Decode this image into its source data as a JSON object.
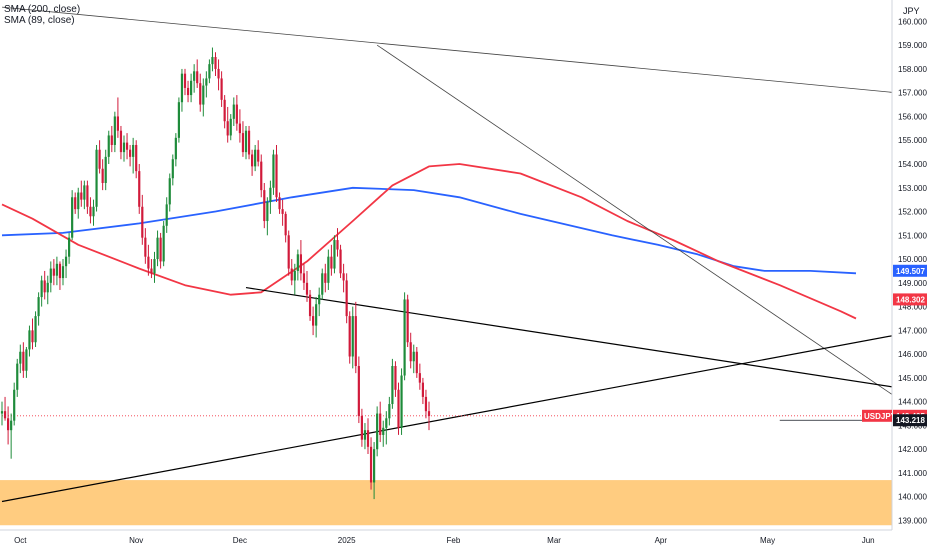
{
  "legend": {
    "sma200": "SMA (200, close)",
    "sma89": "SMA (89, close)"
  },
  "currency_label": "JPY",
  "colors": {
    "up": "#1e8b3a",
    "down": "#d11a3a",
    "sma200": "#2962ff",
    "sma89": "#f23645",
    "support_zone": "#ffcc80",
    "trendline": "#000000",
    "background": "#ffffff",
    "grid": "#ffffff"
  },
  "chart_data": {
    "type": "candlestick",
    "symbol": "USDJPY",
    "price_scale": {
      "ylim": [
        138.6,
        160.9
      ],
      "ticks": [
        "139.000",
        "140.000",
        "141.000",
        "142.000",
        "143.000",
        "144.000",
        "145.000",
        "146.000",
        "147.000",
        "148.000",
        "149.000",
        "150.000",
        "151.000",
        "152.000",
        "153.000",
        "154.000",
        "155.000",
        "156.000",
        "157.000",
        "158.000",
        "159.000",
        "160.000"
      ]
    },
    "time_axis": {
      "labels": [
        "Oct",
        "Nov",
        "Dec",
        "2025",
        "Feb",
        "Mar",
        "Apr",
        "May",
        "Jun"
      ]
    },
    "price_labels": [
      {
        "text": "USDJPY",
        "value": "143.405",
        "color": "#f23645"
      },
      {
        "text": "",
        "value": "143.218",
        "color": "#131722"
      },
      {
        "text": "",
        "value": "149.507",
        "color": "#2962ff"
      },
      {
        "text": "",
        "value": "148.302",
        "color": "#f23645"
      }
    ],
    "support_zone": [
      138.8,
      140.7
    ],
    "candles": [
      [
        143.5,
        144.0,
        143.0,
        143.6
      ],
      [
        143.6,
        144.2,
        143.2,
        143.3
      ],
      [
        143.3,
        143.8,
        142.2,
        142.8
      ],
      [
        142.8,
        143.5,
        141.6,
        143.2
      ],
      [
        143.2,
        144.8,
        143.0,
        144.5
      ],
      [
        144.5,
        145.8,
        144.2,
        145.6
      ],
      [
        145.6,
        146.4,
        145.2,
        146.1
      ],
      [
        146.1,
        146.5,
        145.0,
        145.3
      ],
      [
        145.3,
        146.3,
        145.0,
        146.2
      ],
      [
        146.2,
        147.2,
        145.9,
        147.0
      ],
      [
        147.0,
        147.5,
        146.2,
        146.5
      ],
      [
        146.5,
        147.8,
        146.3,
        147.6
      ],
      [
        147.6,
        148.6,
        147.2,
        148.4
      ],
      [
        148.4,
        149.3,
        148.0,
        149.1
      ],
      [
        149.1,
        149.5,
        148.3,
        148.6
      ],
      [
        148.6,
        149.3,
        148.1,
        149.0
      ],
      [
        149.0,
        149.9,
        148.6,
        149.6
      ],
      [
        149.6,
        150.0,
        148.9,
        149.3
      ],
      [
        149.3,
        150.1,
        148.9,
        149.8
      ],
      [
        149.8,
        149.9,
        148.7,
        149.2
      ],
      [
        149.2,
        150.0,
        148.9,
        149.7
      ],
      [
        149.7,
        150.4,
        149.2,
        150.1
      ],
      [
        150.1,
        151.1,
        149.8,
        150.9
      ],
      [
        150.9,
        152.9,
        150.8,
        152.6
      ],
      [
        152.6,
        152.8,
        151.9,
        152.1
      ],
      [
        152.1,
        153.0,
        151.7,
        152.8
      ],
      [
        152.8,
        153.3,
        152.2,
        152.5
      ],
      [
        152.5,
        153.3,
        152.1,
        153.1
      ],
      [
        153.1,
        153.3,
        151.9,
        152.2
      ],
      [
        152.2,
        152.6,
        151.5,
        151.8
      ],
      [
        151.8,
        152.5,
        151.4,
        152.2
      ],
      [
        152.2,
        154.8,
        152.0,
        154.6
      ],
      [
        154.6,
        155.0,
        153.6,
        153.8
      ],
      [
        153.8,
        154.2,
        152.9,
        153.2
      ],
      [
        153.2,
        154.6,
        152.9,
        154.3
      ],
      [
        154.3,
        155.4,
        154.0,
        155.2
      ],
      [
        155.2,
        155.6,
        154.5,
        154.8
      ],
      [
        154.8,
        156.2,
        154.5,
        156.0
      ],
      [
        156.0,
        156.8,
        155.1,
        155.4
      ],
      [
        155.4,
        155.6,
        154.2,
        154.5
      ],
      [
        154.5,
        155.2,
        154.1,
        154.9
      ],
      [
        154.9,
        155.3,
        154.2,
        154.6
      ],
      [
        154.6,
        154.8,
        153.9,
        154.3
      ],
      [
        154.3,
        155.1,
        153.6,
        154.8
      ],
      [
        154.8,
        155.0,
        153.4,
        153.7
      ],
      [
        153.7,
        154.0,
        151.9,
        152.2
      ],
      [
        152.2,
        152.7,
        150.6,
        150.9
      ],
      [
        150.9,
        151.3,
        149.8,
        150.1
      ],
      [
        150.1,
        150.6,
        149.3,
        149.6
      ],
      [
        149.6,
        150.0,
        149.2,
        149.4
      ],
      [
        149.4,
        150.3,
        149.0,
        150.0
      ],
      [
        150.0,
        151.2,
        149.7,
        150.9
      ],
      [
        150.9,
        151.1,
        149.6,
        149.9
      ],
      [
        149.9,
        151.6,
        149.7,
        151.4
      ],
      [
        151.4,
        152.6,
        151.1,
        152.3
      ],
      [
        152.3,
        153.6,
        152.0,
        153.4
      ],
      [
        153.4,
        154.4,
        153.1,
        154.2
      ],
      [
        154.2,
        155.3,
        153.9,
        155.1
      ],
      [
        155.1,
        156.8,
        154.9,
        156.6
      ],
      [
        156.6,
        158.0,
        156.2,
        157.8
      ],
      [
        157.8,
        158.0,
        156.9,
        157.2
      ],
      [
        157.2,
        157.5,
        156.6,
        156.9
      ],
      [
        156.9,
        157.8,
        156.6,
        157.5
      ],
      [
        157.5,
        158.2,
        157.0,
        157.9
      ],
      [
        157.9,
        158.4,
        157.2,
        157.4
      ],
      [
        157.4,
        157.8,
        156.2,
        156.5
      ],
      [
        156.5,
        157.6,
        156.0,
        157.3
      ],
      [
        157.3,
        157.9,
        156.8,
        157.6
      ],
      [
        157.6,
        158.4,
        157.4,
        158.2
      ],
      [
        158.2,
        158.9,
        157.9,
        158.5
      ],
      [
        158.5,
        158.7,
        157.7,
        158.0
      ],
      [
        158.0,
        158.4,
        157.1,
        157.6
      ],
      [
        157.6,
        157.9,
        156.4,
        156.7
      ],
      [
        156.7,
        156.9,
        155.5,
        155.8
      ],
      [
        155.8,
        156.4,
        154.9,
        155.2
      ],
      [
        155.2,
        156.1,
        155.0,
        155.9
      ],
      [
        155.9,
        156.8,
        155.6,
        156.5
      ],
      [
        156.5,
        156.9,
        155.4,
        155.7
      ],
      [
        155.7,
        156.3,
        154.9,
        155.3
      ],
      [
        155.3,
        155.8,
        154.3,
        154.5
      ],
      [
        154.5,
        155.6,
        154.2,
        155.4
      ],
      [
        155.4,
        155.6,
        154.2,
        154.4
      ],
      [
        154.4,
        154.6,
        153.5,
        153.9
      ],
      [
        153.9,
        154.8,
        153.7,
        154.6
      ],
      [
        154.6,
        155.0,
        153.9,
        154.1
      ],
      [
        154.1,
        154.4,
        152.6,
        152.9
      ],
      [
        152.9,
        153.2,
        151.3,
        151.6
      ],
      [
        151.6,
        152.6,
        151.0,
        152.4
      ],
      [
        152.4,
        153.3,
        151.9,
        153.0
      ],
      [
        153.0,
        154.6,
        152.7,
        154.4
      ],
      [
        154.4,
        154.8,
        152.4,
        152.6
      ],
      [
        152.6,
        152.8,
        151.9,
        152.1
      ],
      [
        152.1,
        152.5,
        151.4,
        151.9
      ],
      [
        151.9,
        152.0,
        150.7,
        151.0
      ],
      [
        151.0,
        151.2,
        149.3,
        149.6
      ],
      [
        149.6,
        150.0,
        148.9,
        149.1
      ],
      [
        149.1,
        149.8,
        148.5,
        149.5
      ],
      [
        149.5,
        150.4,
        149.1,
        150.2
      ],
      [
        150.2,
        150.8,
        149.1,
        149.4
      ],
      [
        149.4,
        149.8,
        148.7,
        149.0
      ],
      [
        149.0,
        149.5,
        148.2,
        148.5
      ],
      [
        148.5,
        148.7,
        147.4,
        147.6
      ],
      [
        147.6,
        148.0,
        146.8,
        147.2
      ],
      [
        147.2,
        148.4,
        146.7,
        148.1
      ],
      [
        148.1,
        148.8,
        147.6,
        148.5
      ],
      [
        148.5,
        149.6,
        148.3,
        149.4
      ],
      [
        149.4,
        149.8,
        148.6,
        149.0
      ],
      [
        149.0,
        150.4,
        148.7,
        150.1
      ],
      [
        150.1,
        150.6,
        149.3,
        149.6
      ],
      [
        149.6,
        151.0,
        149.4,
        150.8
      ],
      [
        150.8,
        151.3,
        150.1,
        150.4
      ],
      [
        150.4,
        150.6,
        149.2,
        149.4
      ],
      [
        149.4,
        149.8,
        148.6,
        149.1
      ],
      [
        149.1,
        149.4,
        147.3,
        147.6
      ],
      [
        147.6,
        147.8,
        145.6,
        145.9
      ],
      [
        145.9,
        148.0,
        145.4,
        147.6
      ],
      [
        147.6,
        148.2,
        145.2,
        145.5
      ],
      [
        145.5,
        145.9,
        143.1,
        143.4
      ],
      [
        143.4,
        143.7,
        142.1,
        142.4
      ],
      [
        142.4,
        143.1,
        142.0,
        142.8
      ],
      [
        142.8,
        143.3,
        141.8,
        142.1
      ],
      [
        142.1,
        142.5,
        140.3,
        140.6
      ],
      [
        140.6,
        142.3,
        139.9,
        142.0
      ],
      [
        142.0,
        143.8,
        141.7,
        143.5
      ],
      [
        143.5,
        144.0,
        142.3,
        142.6
      ],
      [
        142.6,
        143.2,
        142.1,
        142.9
      ],
      [
        142.9,
        143.6,
        142.2,
        143.3
      ],
      [
        143.3,
        144.2,
        143.0,
        143.9
      ],
      [
        143.9,
        145.8,
        143.7,
        145.5
      ],
      [
        145.5,
        145.7,
        144.2,
        144.5
      ],
      [
        144.5,
        144.8,
        142.6,
        142.9
      ],
      [
        142.9,
        145.4,
        142.6,
        145.1
      ],
      [
        145.1,
        148.6,
        144.9,
        148.3
      ],
      [
        148.3,
        148.5,
        146.3,
        146.5
      ],
      [
        146.5,
        146.9,
        145.4,
        145.7
      ],
      [
        145.7,
        146.4,
        145.2,
        146.1
      ],
      [
        146.1,
        146.3,
        145.0,
        145.2
      ],
      [
        145.2,
        145.6,
        144.5,
        144.8
      ],
      [
        144.8,
        145.0,
        143.9,
        144.2
      ],
      [
        144.2,
        144.5,
        143.3,
        143.6
      ],
      [
        143.6,
        144.0,
        142.8,
        143.4
      ]
    ],
    "sma200": [
      [
        0,
        151.0
      ],
      [
        20,
        151.1
      ],
      [
        45,
        151.5
      ],
      [
        70,
        152.0
      ],
      [
        95,
        152.6
      ],
      [
        115,
        153.0
      ],
      [
        135,
        152.9
      ],
      [
        150,
        152.6
      ],
      [
        170,
        151.9
      ],
      [
        200,
        151.0
      ],
      [
        215,
        150.6
      ],
      [
        228,
        150.2
      ],
      [
        240,
        149.7
      ],
      [
        250,
        149.5
      ],
      [
        265,
        149.5
      ],
      [
        280,
        149.4
      ]
    ],
    "sma89": [
      [
        0,
        152.3
      ],
      [
        10,
        151.7
      ],
      [
        25,
        150.6
      ],
      [
        45,
        149.6
      ],
      [
        60,
        148.9
      ],
      [
        75,
        148.5
      ],
      [
        85,
        148.6
      ],
      [
        100,
        149.9
      ],
      [
        115,
        151.6
      ],
      [
        128,
        153.1
      ],
      [
        140,
        153.9
      ],
      [
        150,
        154.0
      ],
      [
        170,
        153.6
      ],
      [
        190,
        152.6
      ],
      [
        205,
        151.6
      ],
      [
        220,
        150.8
      ],
      [
        235,
        149.9
      ],
      [
        255,
        148.9
      ],
      [
        275,
        147.8
      ],
      [
        280,
        147.5
      ]
    ],
    "trendlines": [
      {
        "from": [
          0,
          160.6
        ],
        "to": [
          293,
          157.0
        ],
        "color": "#444444",
        "width": 0.8
      },
      {
        "from": [
          123,
          159.0
        ],
        "to": [
          293,
          144.2
        ],
        "color": "#444444",
        "width": 0.8
      },
      {
        "from": [
          80,
          148.8
        ],
        "to": [
          293,
          144.6
        ],
        "color": "#000000",
        "width": 1.2
      },
      {
        "from": [
          0,
          139.8
        ],
        "to": [
          293,
          146.8
        ],
        "color": "#000000",
        "width": 1.2
      }
    ],
    "reference_lines": [
      {
        "value": 143.405,
        "style": "dotted",
        "color": "#f23645",
        "from": 0
      },
      {
        "value": 143.218,
        "style": "solid",
        "color": "#131722",
        "from": 255
      }
    ]
  }
}
